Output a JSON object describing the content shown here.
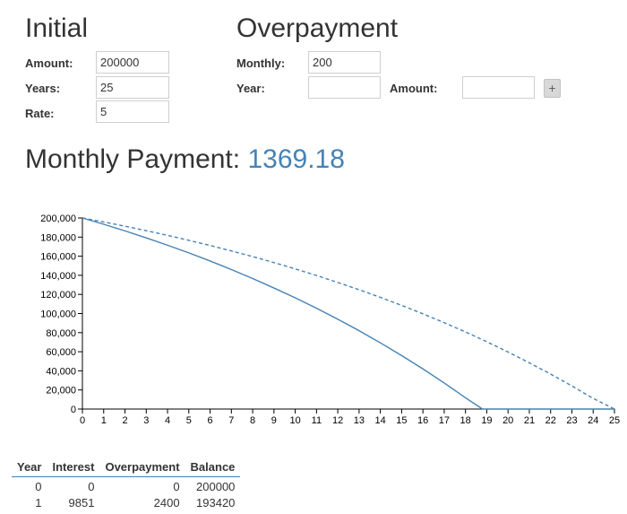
{
  "initial": {
    "title": "Initial",
    "fields": [
      {
        "label": "Amount:",
        "value": "200000"
      },
      {
        "label": "Years:",
        "value": "25"
      },
      {
        "label": "Rate:",
        "value": "5"
      }
    ]
  },
  "overpayment": {
    "title": "Overpayment",
    "monthly": {
      "label": "Monthly:",
      "value": "200"
    },
    "year": {
      "label": "Year:",
      "value": ""
    },
    "amount": {
      "label": "Amount:",
      "value": ""
    },
    "add_label": "+"
  },
  "monthly_payment": {
    "label": "Monthly Payment:",
    "value": "1369.18"
  },
  "colors": {
    "accent": "#4682b4",
    "text": "#333333"
  },
  "chart_data": {
    "type": "line",
    "xlim": [
      0,
      25
    ],
    "ylim": [
      0,
      200000
    ],
    "x_ticks": [
      0,
      1,
      2,
      3,
      4,
      5,
      6,
      7,
      8,
      9,
      10,
      11,
      12,
      13,
      14,
      15,
      16,
      17,
      18,
      19,
      20,
      21,
      22,
      23,
      24,
      25
    ],
    "y_ticks": [
      0,
      20000,
      40000,
      60000,
      80000,
      100000,
      120000,
      140000,
      160000,
      180000,
      200000
    ],
    "y_tick_labels": [
      "0",
      "20,000",
      "40,000",
      "60,000",
      "80,000",
      "100,000",
      "120,000",
      "140,000",
      "160,000",
      "180,000",
      "200,000"
    ],
    "grid": false,
    "series": [
      {
        "style": "solid",
        "x": [
          0,
          1,
          2,
          3,
          4,
          5,
          6,
          7,
          8,
          9,
          10,
          11,
          12,
          13,
          14,
          15,
          16,
          17,
          18,
          18.8,
          19,
          20,
          21,
          22,
          23,
          24,
          25
        ],
        "y": [
          200000,
          193420,
          186500,
          179200,
          171500,
          163500,
          155000,
          146000,
          136600,
          126700,
          116400,
          105500,
          94000,
          82000,
          69300,
          56000,
          42000,
          27300,
          11800,
          0,
          0,
          0,
          0,
          0,
          0,
          0,
          0
        ]
      },
      {
        "style": "dashed",
        "x": [
          0,
          1,
          2,
          3,
          4,
          5,
          6,
          7,
          8,
          9,
          10,
          11,
          12,
          13,
          14,
          15,
          16,
          17,
          18,
          19,
          20,
          21,
          22,
          23,
          24,
          25
        ],
        "y": [
          200000,
          195800,
          191400,
          186700,
          181800,
          176600,
          171200,
          165500,
          159600,
          153300,
          146700,
          139800,
          132500,
          124900,
          116900,
          108500,
          99700,
          90400,
          80700,
          70500,
          59700,
          48400,
          36600,
          24200,
          11100,
          0
        ]
      }
    ]
  },
  "table": {
    "headers": [
      "Year",
      "Interest",
      "Overpayment",
      "Balance"
    ],
    "rows": [
      [
        "0",
        "0",
        "0",
        "200000"
      ],
      [
        "1",
        "9851",
        "2400",
        "193420"
      ]
    ]
  }
}
